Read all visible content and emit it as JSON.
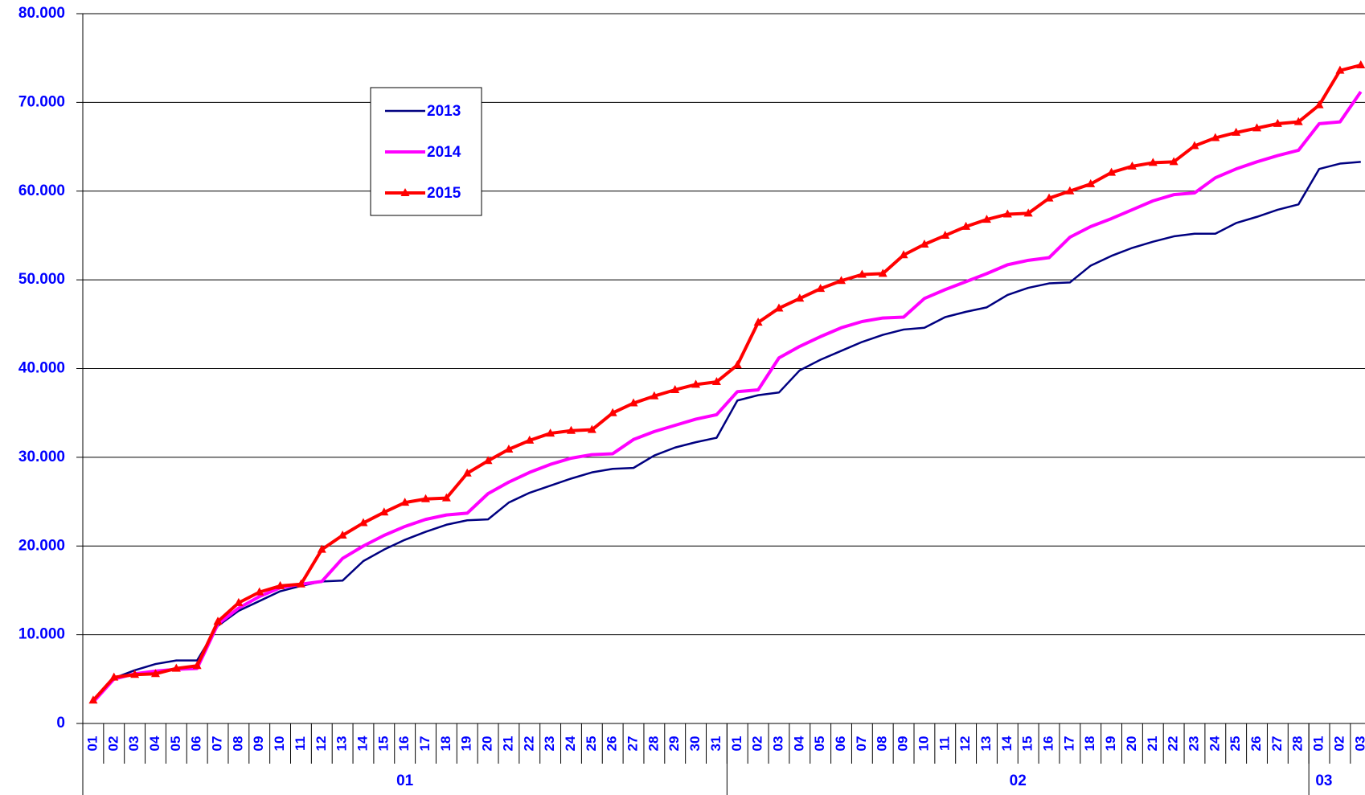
{
  "chart_data": {
    "type": "line",
    "categories": [
      "01",
      "02",
      "03",
      "04",
      "05",
      "06",
      "07",
      "08",
      "09",
      "10",
      "11",
      "12",
      "13",
      "14",
      "15",
      "16",
      "17",
      "18",
      "19",
      "20",
      "21",
      "22",
      "23",
      "24",
      "25",
      "26",
      "27",
      "28",
      "29",
      "30",
      "31",
      "01",
      "02",
      "03",
      "04",
      "05",
      "06",
      "07",
      "08",
      "09",
      "10",
      "11",
      "12",
      "13",
      "14",
      "15",
      "16",
      "17",
      "18",
      "19",
      "20",
      "21",
      "22",
      "23",
      "24",
      "25",
      "26",
      "27",
      "28",
      "01",
      "02",
      "03"
    ],
    "groups": [
      {
        "label": "01",
        "size": 31
      },
      {
        "label": "02",
        "size": 28
      },
      {
        "label": "03",
        "size": 3
      }
    ],
    "series": [
      {
        "name": "2013",
        "color": "#000080",
        "width": 2.5,
        "values": [
          2700,
          5100,
          6000,
          6700,
          7100,
          7100,
          11000,
          12700,
          13800,
          14900,
          15500,
          16000,
          16100,
          18300,
          19600,
          20700,
          21600,
          22400,
          22900,
          23000,
          24900,
          26000,
          26800,
          27600,
          28300,
          28700,
          28800,
          30200,
          31100,
          31700,
          32200,
          36400,
          37000,
          37300,
          39800,
          41000,
          42000,
          43000,
          43800,
          44400,
          44600,
          45800,
          46400,
          46900,
          48300,
          49100,
          49600,
          49700,
          51600,
          52700,
          53600,
          54300,
          54900,
          55200,
          55200,
          56400,
          57100,
          57900,
          58500,
          62500,
          63100,
          63300
        ]
      },
      {
        "name": "2014",
        "color": "#ff00ff",
        "width": 4,
        "values": [
          2400,
          5000,
          5600,
          5900,
          6100,
          6200,
          11200,
          13000,
          14300,
          15300,
          15700,
          16000,
          18600,
          20000,
          21200,
          22200,
          23000,
          23500,
          23700,
          25900,
          27200,
          28300,
          29200,
          29900,
          30300,
          30400,
          32000,
          32900,
          33600,
          34300,
          34800,
          37400,
          37600,
          41200,
          42500,
          43600,
          44600,
          45300,
          45700,
          45800,
          47900,
          48900,
          49800,
          50700,
          51700,
          52200,
          52500,
          54800,
          56000,
          56900,
          57900,
          58900,
          59600,
          59800,
          61500,
          62500,
          63300,
          64000,
          64600,
          67600,
          67800,
          71200
        ]
      },
      {
        "name": "2015",
        "color": "#ff0000",
        "width": 4,
        "marker": "triangle",
        "values": [
          2600,
          5200,
          5500,
          5600,
          6200,
          6500,
          11500,
          13600,
          14800,
          15500,
          15700,
          19600,
          21200,
          22600,
          23800,
          24900,
          25300,
          25400,
          28200,
          29600,
          30900,
          31900,
          32700,
          33000,
          33100,
          35000,
          36100,
          36900,
          37600,
          38200,
          38500,
          40400,
          45200,
          46800,
          47900,
          49000,
          49900,
          50600,
          50700,
          52800,
          54000,
          55000,
          56000,
          56800,
          57400,
          57500,
          59200,
          60000,
          60800,
          62100,
          62800,
          63200,
          63300,
          65100,
          66000,
          66600,
          67100,
          67600,
          67800,
          69700,
          73600,
          74200
        ]
      }
    ],
    "ylim": [
      0,
      80000
    ],
    "yticks": [
      0,
      {
        "value": 10000,
        "label": "10.000"
      },
      {
        "value": 20000,
        "label": "20.000"
      },
      {
        "value": 30000,
        "label": "30.000"
      },
      {
        "value": 40000,
        "label": "40.000"
      },
      {
        "value": 50000,
        "label": "50.000"
      },
      {
        "value": 60000,
        "label": "60.000"
      },
      {
        "value": 70000,
        "label": "70.000"
      },
      {
        "value": 80000,
        "label": "80.000"
      }
    ],
    "grid": true
  }
}
